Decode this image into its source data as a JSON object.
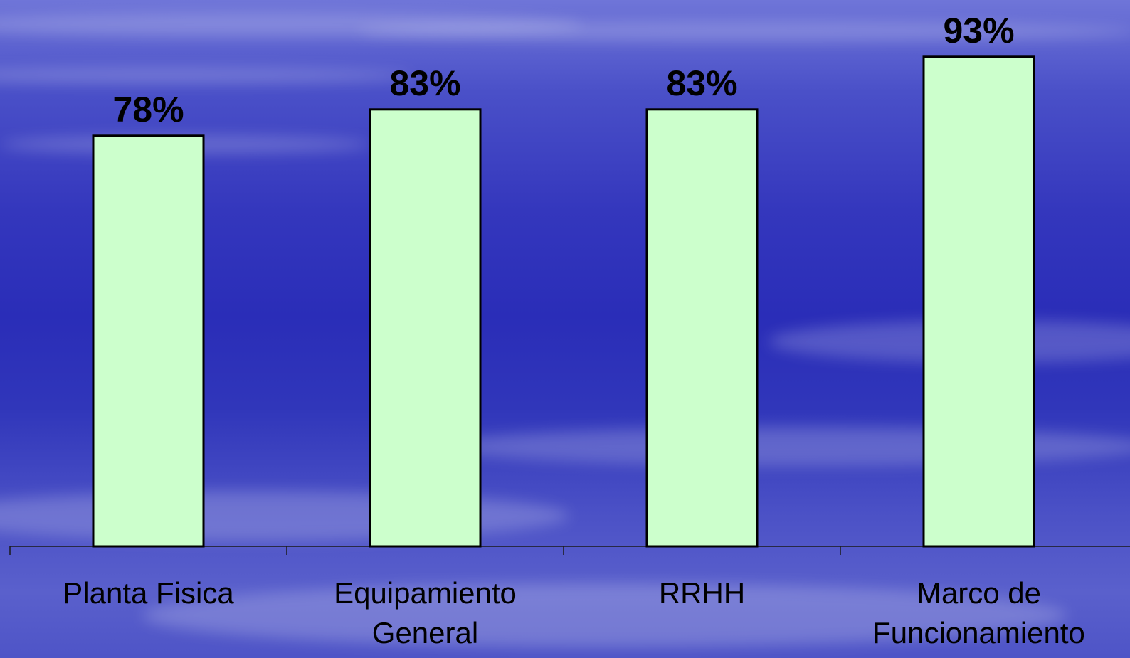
{
  "chart_data": {
    "type": "bar",
    "categories": [
      [
        "Planta Fisica"
      ],
      [
        "Equipamiento",
        "General"
      ],
      [
        "RRHH"
      ],
      [
        "Marco de",
        "Funcionamiento"
      ]
    ],
    "values": [
      78,
      83,
      83,
      93
    ],
    "data_labels": [
      "78%",
      "83%",
      "83%",
      "93%"
    ],
    "title": "",
    "xlabel": "",
    "ylabel": "",
    "ylim": [
      0,
      100
    ],
    "grid": false,
    "legend": "none",
    "colors": {
      "bar_fill": "#ccffcc",
      "bar_stroke": "#000000",
      "background": "#3437bd"
    }
  }
}
